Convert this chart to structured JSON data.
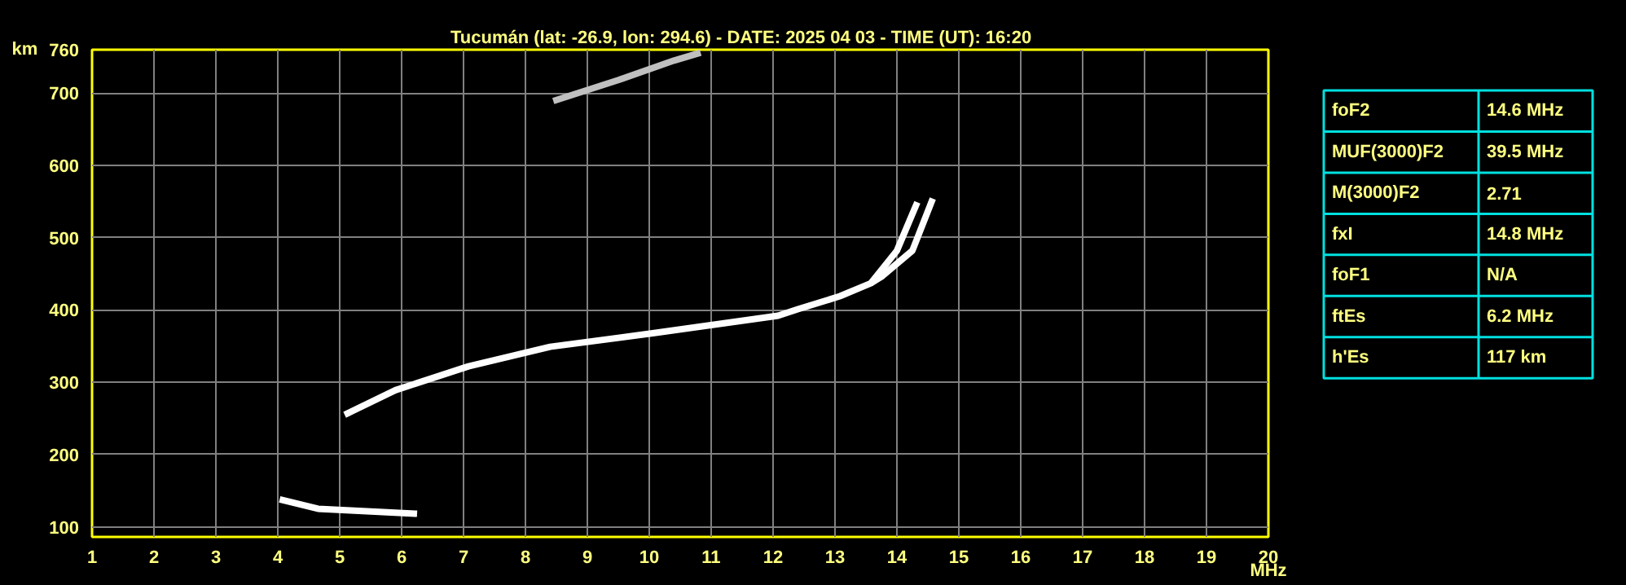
{
  "chart_data": [
    {
      "type": "line",
      "title": "Tucumán (lat: -26.9, lon: 294.6) - DATE: 2025 04 03 - TIME (UT): 16:20",
      "xlabel": "MHz",
      "ylabel": "km",
      "xlim": [
        1,
        20
      ],
      "ylim": [
        86,
        760
      ],
      "xticks": [
        1,
        2,
        3,
        4,
        5,
        6,
        7,
        8,
        9,
        10,
        11,
        12,
        13,
        14,
        15,
        16,
        17,
        18,
        19,
        20
      ],
      "yticks": [
        100,
        200,
        300,
        400,
        500,
        600,
        700,
        760
      ],
      "grid": true,
      "line_style": "solid",
      "series": [
        {
          "color": "#ffffff",
          "x": [
            5.08,
            5.9,
            7.08,
            8.4,
            10.08,
            12.08,
            12.4,
            13.08,
            13.58,
            14.0,
            14.33
          ],
          "values": [
            255,
            289,
            322,
            349,
            368,
            392,
            401,
            419,
            437,
            482,
            549
          ]
        },
        {
          "color": "#ffffff",
          "x": [
            13.58,
            13.75,
            14.25,
            14.58
          ],
          "values": [
            437,
            446,
            482,
            554
          ]
        },
        {
          "color": "#ffffff",
          "x": [
            4.03,
            4.65,
            6.25
          ],
          "values": [
            138,
            125,
            118
          ]
        },
        {
          "color": "#c0c0c0",
          "x": [
            8.45,
            9.5,
            10.4,
            10.83
          ],
          "values": [
            689,
            718,
            745,
            756
          ]
        }
      ]
    },
    {
      "type": "other",
      "categories": [
        "foF2",
        "MUF(3000)F2",
        "M(3000)F2",
        "fxI",
        "foF1",
        "ftEs",
        "h'Es"
      ],
      "value_labels": [
        "14.6 MHz",
        "39.5 MHz",
        "2.71",
        "14.8 MHz",
        "N/A",
        "6.2 MHz",
        "117 km"
      ],
      "color": "#00e0e0"
    }
  ]
}
